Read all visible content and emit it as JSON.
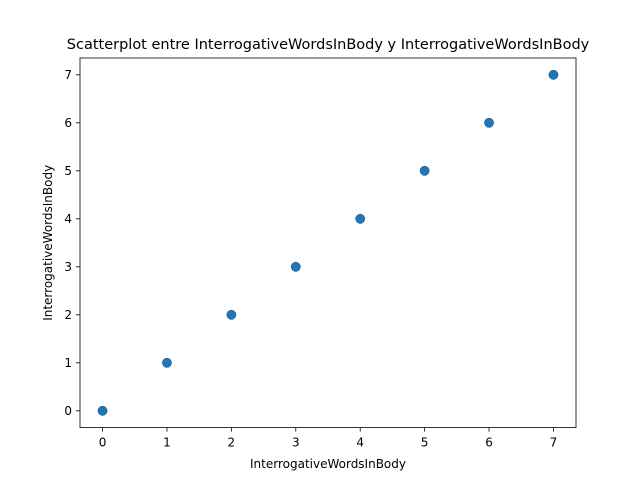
{
  "chart_data": {
    "type": "scatter",
    "title": "Scatterplot entre InterrogativeWordsInBody y InterrogativeWordsInBody",
    "xlabel": "InterrogativeWordsInBody",
    "ylabel": "InterrogativeWordsInBody",
    "xlim": [
      -0.35,
      7.35
    ],
    "ylim": [
      -0.35,
      7.35
    ],
    "xticks": [
      "0",
      "1",
      "2",
      "3",
      "4",
      "5",
      "6",
      "7"
    ],
    "yticks": [
      "0",
      "1",
      "2",
      "3",
      "4",
      "5",
      "6",
      "7"
    ],
    "grid": false,
    "series": [
      {
        "color": "#1f77b4",
        "points": [
          {
            "x": 0,
            "y": 0
          },
          {
            "x": 1,
            "y": 1
          },
          {
            "x": 2,
            "y": 2
          },
          {
            "x": 3,
            "y": 3
          },
          {
            "x": 4,
            "y": 4
          },
          {
            "x": 5,
            "y": 5
          },
          {
            "x": 6,
            "y": 6
          },
          {
            "x": 7,
            "y": 7
          }
        ]
      }
    ]
  }
}
